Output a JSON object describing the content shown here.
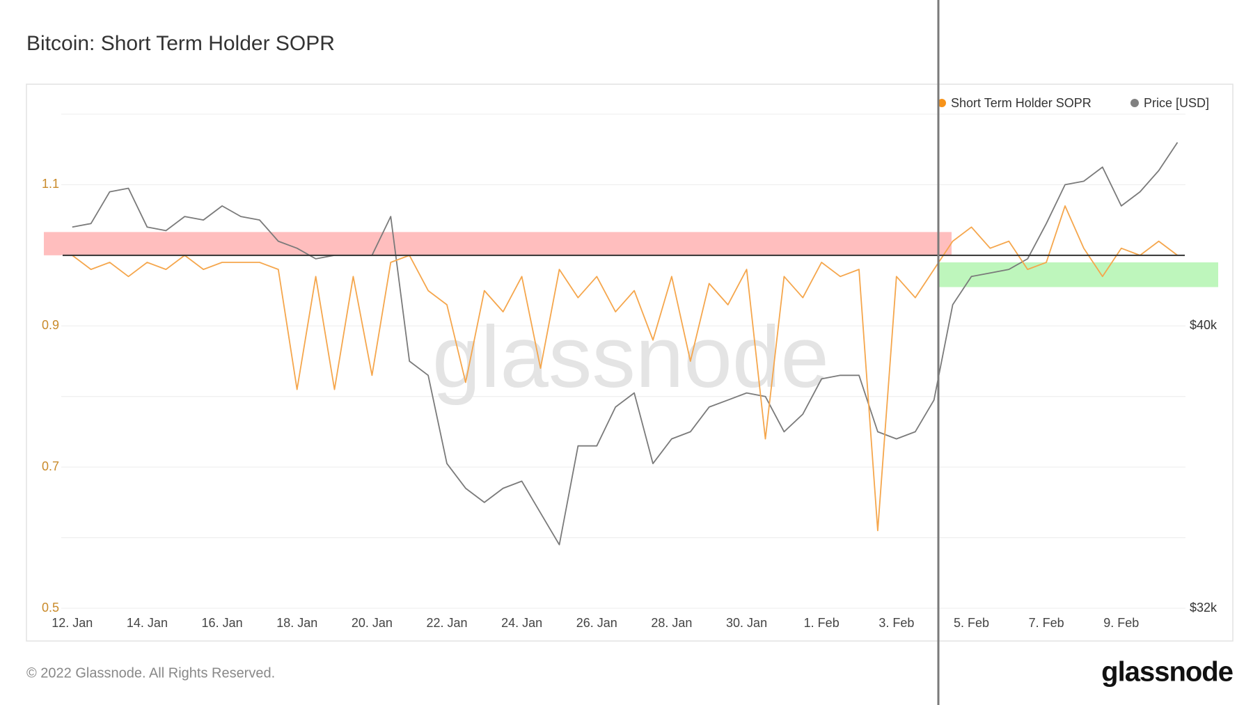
{
  "chart_data": {
    "type": "line",
    "title": "Bitcoin: Short Term Holder SOPR",
    "legend": "top-right",
    "grid": true,
    "categories": [
      "12. Jan",
      null,
      null,
      null,
      "14. Jan",
      null,
      null,
      null,
      "16. Jan",
      null,
      null,
      null,
      "18. Jan",
      null,
      null,
      null,
      "20. Jan",
      null,
      null,
      null,
      "22. Jan",
      null,
      null,
      null,
      "24. Jan",
      null,
      null,
      null,
      "26. Jan",
      null,
      null,
      null,
      "28. Jan",
      null,
      null,
      null,
      "30. Jan",
      null,
      null,
      null,
      "1. Feb",
      null,
      null,
      null,
      "3. Feb",
      null,
      null,
      null,
      "5. Feb",
      null,
      null,
      null,
      "7. Feb",
      null,
      null,
      null,
      "9. Feb",
      null,
      null,
      null
    ],
    "ylim": [
      0.5,
      1.2
    ],
    "yticks": [
      0.5,
      0.7,
      0.9,
      1.1
    ],
    "ygrid_minor": [
      0.6,
      0.8,
      1.0,
      1.2
    ],
    "y2lim": [
      32000,
      46000
    ],
    "y2ticks": [
      {
        "value": 32000,
        "label": "$32k"
      },
      {
        "value": 40000,
        "label": "$40k"
      }
    ],
    "reference_line": 1.0,
    "bands": [
      {
        "from": 1.0,
        "to": 1.033,
        "color": "#ffb3b3"
      },
      {
        "from": 0.955,
        "to": 0.99,
        "color": "#b3f5b0"
      }
    ],
    "series": [
      {
        "name": "Short Term Holder SOPR",
        "color": "#f7931a",
        "line_color": "#f5a64c",
        "values": [
          1.0,
          0.98,
          0.99,
          0.97,
          0.99,
          0.98,
          1.0,
          0.98,
          0.99,
          0.99,
          0.99,
          0.98,
          0.81,
          0.97,
          0.81,
          0.97,
          0.83,
          0.99,
          1.0,
          0.95,
          0.93,
          0.82,
          0.95,
          0.92,
          0.97,
          0.84,
          0.98,
          0.94,
          0.97,
          0.92,
          0.95,
          0.88,
          0.97,
          0.85,
          0.96,
          0.93,
          0.98,
          0.74,
          0.97,
          0.94,
          0.99,
          0.97,
          0.98,
          0.61,
          0.97,
          0.94,
          0.98,
          1.02,
          1.04,
          1.01,
          1.02,
          0.98,
          0.99,
          1.07,
          1.01,
          0.97,
          1.01,
          1.0,
          1.02,
          1.0
        ]
      },
      {
        "name": "Price [USD]",
        "color": "#808080",
        "line_color": "#7a7a7a",
        "axis": "y2",
        "values": [
          42800,
          42900,
          43800,
          43900,
          42800,
          42700,
          43100,
          43000,
          43400,
          43100,
          43000,
          42400,
          42200,
          41900,
          42000,
          42000,
          42000,
          43100,
          39000,
          38600,
          36100,
          35400,
          35000,
          35400,
          35600,
          34700,
          33800,
          36600,
          36600,
          37700,
          38100,
          36100,
          36800,
          37000,
          37700,
          37900,
          38100,
          38000,
          37000,
          37500,
          38500,
          38600,
          38600,
          37000,
          36800,
          37000,
          37900,
          40600,
          41400,
          41500,
          41600,
          41900,
          42900,
          44000,
          44100,
          44500,
          43400,
          43800,
          44400,
          45200
        ]
      }
    ]
  },
  "watermark": "glassnode",
  "copyright": "© 2022 Glassnode. All Rights Reserved.",
  "logo": "glassnode"
}
